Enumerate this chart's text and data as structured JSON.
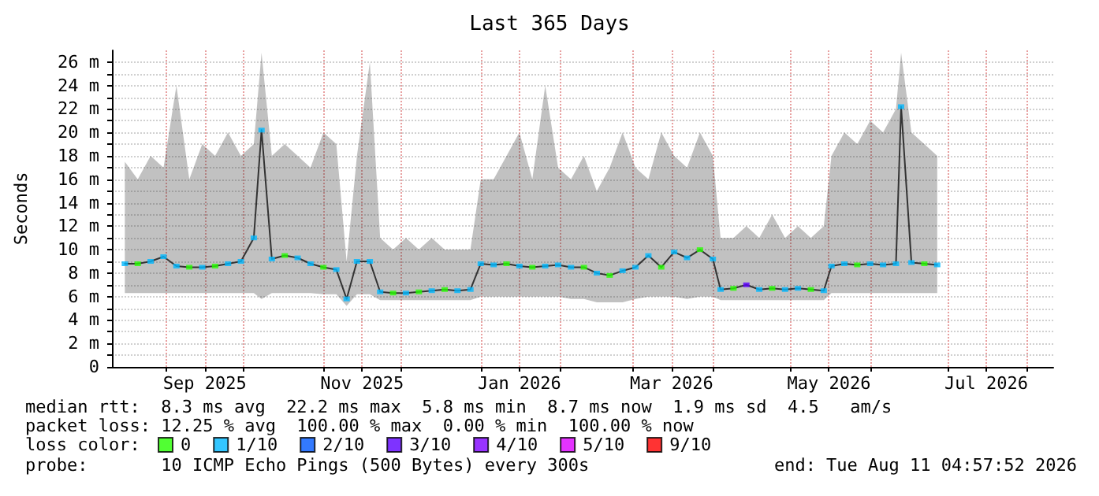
{
  "chart_data": {
    "type": "line",
    "title": "Last 365 Days",
    "ylabel": "Seconds",
    "legend_title": "loss color:",
    "legend": "bottom",
    "grid": true,
    "xlim": [
      "2025-08-11",
      "2026-08-11"
    ],
    "xticks": [
      {
        "value": "2025-09-01",
        "label": null
      },
      {
        "value": "2025-09-16",
        "label": "Sep 2025"
      },
      {
        "value": "2025-10-01",
        "label": null
      },
      {
        "value": "2025-11-01",
        "label": null
      },
      {
        "value": "2025-11-16",
        "label": "Nov 2025"
      },
      {
        "value": "2025-12-01",
        "label": null
      },
      {
        "value": "2026-01-01",
        "label": null
      },
      {
        "value": "2026-01-16",
        "label": "Jan 2026"
      },
      {
        "value": "2026-02-01",
        "label": null
      },
      {
        "value": "2026-03-01",
        "label": null
      },
      {
        "value": "2026-03-16",
        "label": "Mar 2026"
      },
      {
        "value": "2026-04-01",
        "label": null
      },
      {
        "value": "2026-05-01",
        "label": null
      },
      {
        "value": "2026-05-16",
        "label": "May 2026"
      },
      {
        "value": "2026-06-01",
        "label": null
      },
      {
        "value": "2026-07-01",
        "label": null
      },
      {
        "value": "2026-07-16",
        "label": "Jul 2026"
      },
      {
        "value": "2026-08-01",
        "label": null
      }
    ],
    "ylim": [
      0,
      27
    ],
    "yticks": [
      0,
      {
        "value": 1,
        "label": null
      },
      {
        "value": 2,
        "label": "2 m"
      },
      {
        "value": 3,
        "label": null
      },
      {
        "value": 4,
        "label": "4 m"
      },
      {
        "value": 5,
        "label": null
      },
      {
        "value": 6,
        "label": "6 m"
      },
      {
        "value": 7,
        "label": null
      },
      {
        "value": 8,
        "label": "8 m"
      },
      {
        "value": 9,
        "label": null
      },
      {
        "value": 10,
        "label": "10 m"
      },
      {
        "value": 11,
        "label": null
      },
      {
        "value": 12,
        "label": "12 m"
      },
      {
        "value": 13,
        "label": null
      },
      {
        "value": 14,
        "label": "14 m"
      },
      {
        "value": 15,
        "label": null
      },
      {
        "value": 16,
        "label": "16 m"
      },
      {
        "value": 17,
        "label": null
      },
      {
        "value": 18,
        "label": "18 m"
      },
      {
        "value": 19,
        "label": null
      },
      {
        "value": 20,
        "label": "20 m"
      },
      {
        "value": 21,
        "label": null
      },
      {
        "value": 22,
        "label": "22 m"
      },
      {
        "value": 23,
        "label": null
      },
      {
        "value": 24,
        "label": "24 m"
      },
      {
        "value": 25,
        "label": null
      },
      {
        "value": 26,
        "label": "26 m"
      }
    ],
    "annotations": [
      "median rtt:  8.3 ms avg  22.2 ms max  5.8 ms min  8.7 ms now  1.9 ms sd  4.5   am/s",
      "packet loss: 12.25 % avg  100.00 % max  0.00 % min  100.00 % now",
      "probe:       10 ICMP Echo Pings (500 Bytes) every 300s",
      "end: Tue Aug 11 04:57:52 2026"
    ],
    "series": [
      {
        "color": "#333333",
        "marker": "none",
        "x": [
          "2025-08-16",
          "2025-08-21",
          "2025-08-26",
          "2025-08-31",
          "2025-09-05",
          "2025-09-10",
          "2025-09-15",
          "2025-09-20",
          "2025-09-25",
          "2025-09-30",
          "2025-10-05",
          "2025-10-08",
          "2025-10-12",
          "2025-10-17",
          "2025-10-22",
          "2025-10-27",
          "2025-11-01",
          "2025-11-06",
          "2025-11-10",
          "2025-11-14",
          "2025-11-19",
          "2025-11-23",
          "2025-11-28",
          "2025-12-03",
          "2025-12-08",
          "2025-12-13",
          "2025-12-18",
          "2025-12-23",
          "2025-12-28",
          "2026-01-01",
          "2026-01-06",
          "2026-01-11",
          "2026-01-16",
          "2026-01-21",
          "2026-01-26",
          "2026-01-31",
          "2026-02-05",
          "2026-02-10",
          "2026-02-15",
          "2026-02-20",
          "2026-02-25",
          "2026-03-02",
          "2026-03-07",
          "2026-03-12",
          "2026-03-17",
          "2026-03-22",
          "2026-03-27",
          "2026-04-01",
          "2026-04-04",
          "2026-04-09",
          "2026-04-14",
          "2026-04-19",
          "2026-04-24",
          "2026-04-29",
          "2026-05-04",
          "2026-05-09",
          "2026-05-14",
          "2026-05-17",
          "2026-05-22",
          "2026-05-27",
          "2026-06-01",
          "2026-06-06",
          "2026-06-11",
          "2026-06-13",
          "2026-06-17",
          "2026-06-22",
          "2026-06-27"
        ],
        "values": [
          8.8,
          8.8,
          9,
          9.4,
          8.6,
          8.5,
          8.5,
          8.6,
          8.8,
          9,
          11,
          20.2,
          9.2,
          9.5,
          9.3,
          8.8,
          8.5,
          8.3,
          5.8,
          9,
          9,
          6.4,
          6.3,
          6.3,
          6.4,
          6.5,
          6.6,
          6.5,
          6.6,
          8.8,
          8.7,
          8.8,
          8.6,
          8.5,
          8.6,
          8.7,
          8.5,
          8.5,
          8,
          7.8,
          8.2,
          8.5,
          9.5,
          8.5,
          9.8,
          9.3,
          10,
          9.2,
          6.6,
          6.7,
          7,
          6.6,
          6.7,
          6.6,
          6.7,
          6.6,
          6.5,
          8.6,
          8.8,
          8.7,
          8.8,
          8.7,
          8.8,
          22.2,
          8.9,
          8.8,
          8.7
        ],
        "lower": [
          6.3,
          6.3,
          6.3,
          6.3,
          6.3,
          6.3,
          6.3,
          6.3,
          6.3,
          6.3,
          6.3,
          5.8,
          6.3,
          6.3,
          6.3,
          6.3,
          6.2,
          6.2,
          5.2,
          6.2,
          6.2,
          5.7,
          5.7,
          5.7,
          5.7,
          5.7,
          5.7,
          5.7,
          5.7,
          6,
          6,
          6,
          6,
          6,
          6,
          6,
          5.8,
          5.8,
          5.5,
          5.5,
          5.5,
          5.8,
          6,
          6,
          6,
          5.8,
          6,
          6,
          5.7,
          5.7,
          5.7,
          5.7,
          5.7,
          5.7,
          5.7,
          5.7,
          5.7,
          6.3,
          6.3,
          6.3,
          6.3,
          6.3,
          6.3,
          6.3,
          6.3,
          6.3,
          6.3
        ],
        "upper": [
          17.5,
          16,
          18,
          17,
          24,
          16,
          19,
          18,
          20,
          18,
          19,
          26.8,
          18,
          19,
          18,
          17,
          20,
          19,
          9,
          18,
          26,
          11,
          10,
          11,
          10,
          11,
          10,
          10,
          10,
          16,
          16,
          18,
          20,
          16,
          24,
          17,
          16,
          18,
          15,
          17,
          20,
          17,
          16,
          20,
          18,
          17,
          20,
          18,
          11,
          11,
          12,
          11,
          13,
          11,
          12,
          11,
          12,
          18,
          20,
          19,
          21,
          20,
          22,
          26.8,
          20,
          19,
          18
        ]
      },
      {
        "name": "0",
        "type": "scatter",
        "color": "#26ff00",
        "marker": "square",
        "x": [
          "2025-08-21",
          "2025-09-10",
          "2025-09-20",
          "2025-10-17",
          "2025-11-01",
          "2025-11-28",
          "2025-12-08",
          "2025-12-18",
          "2026-01-11",
          "2026-01-21",
          "2026-02-10",
          "2026-02-20",
          "2026-03-12",
          "2026-03-27",
          "2026-04-09",
          "2026-04-24",
          "2026-05-09",
          "2026-05-27",
          "2026-06-22"
        ],
        "values": [
          8.8,
          8.5,
          8.6,
          9.5,
          8.5,
          6.3,
          6.4,
          6.6,
          8.8,
          8.5,
          8.5,
          7.8,
          8.5,
          10,
          6.7,
          6.7,
          6.6,
          8.7,
          8.8
        ]
      },
      {
        "name": "1/10",
        "type": "scatter",
        "color": "#00b8ff",
        "marker": "square",
        "x": [
          "2025-08-16",
          "2025-08-26",
          "2025-08-31",
          "2025-09-05",
          "2025-09-15",
          "2025-09-25",
          "2025-09-30",
          "2025-10-05",
          "2025-10-08",
          "2025-10-12",
          "2025-10-22",
          "2025-10-27",
          "2025-11-06",
          "2025-11-10",
          "2025-11-14",
          "2025-11-19",
          "2025-11-23",
          "2025-12-03",
          "2025-12-13",
          "2025-12-23",
          "2025-12-28",
          "2026-01-01",
          "2026-01-06",
          "2026-01-16",
          "2026-01-26",
          "2026-01-31",
          "2026-02-05",
          "2026-02-15",
          "2026-02-25",
          "2026-03-02",
          "2026-03-07",
          "2026-03-17",
          "2026-03-22",
          "2026-04-01",
          "2026-04-04",
          "2026-04-19",
          "2026-04-29",
          "2026-05-04",
          "2026-05-14",
          "2026-05-17",
          "2026-05-22",
          "2026-06-01",
          "2026-06-06",
          "2026-06-11",
          "2026-06-13",
          "2026-06-17",
          "2026-06-27"
        ],
        "values": [
          8.8,
          9,
          9.4,
          8.6,
          8.5,
          8.8,
          9,
          11,
          20.2,
          9.2,
          9.3,
          8.8,
          8.3,
          5.8,
          9,
          9,
          6.4,
          6.3,
          6.5,
          6.5,
          6.6,
          8.8,
          8.7,
          8.6,
          8.6,
          8.7,
          8.5,
          8,
          8.2,
          8.5,
          9.5,
          9.8,
          9.3,
          9.2,
          6.6,
          6.6,
          6.6,
          6.7,
          6.5,
          8.6,
          8.8,
          8.8,
          8.7,
          8.8,
          22.2,
          8.9,
          8.7
        ]
      },
      {
        "name": "2/10",
        "type": "scatter",
        "color": "#0059ff",
        "marker": "square"
      },
      {
        "name": "3/10",
        "type": "scatter",
        "color": "#5e00ff",
        "marker": "square",
        "x": [
          "2026-04-14"
        ],
        "values": [
          7
        ]
      },
      {
        "name": "4/10",
        "type": "scatter",
        "color": "#7e00ff",
        "marker": "square"
      },
      {
        "name": "5/10",
        "type": "scatter",
        "color": "#dd00ff",
        "marker": "square"
      },
      {
        "name": "9/10",
        "type": "scatter",
        "color": "#ff0000",
        "marker": "square"
      }
    ]
  }
}
